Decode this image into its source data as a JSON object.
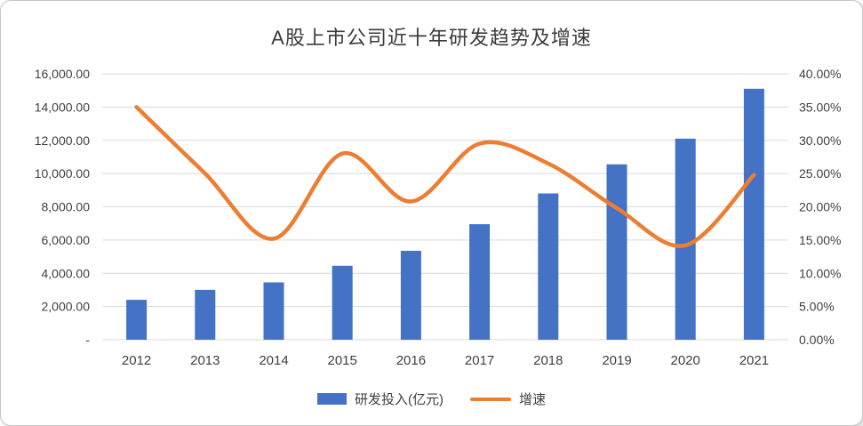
{
  "chart_data": {
    "type": "combo",
    "title": "A股上市公司近十年研发趋势及增速",
    "categories": [
      "2012",
      "2013",
      "2014",
      "2015",
      "2016",
      "2017",
      "2018",
      "2019",
      "2020",
      "2021"
    ],
    "series": [
      {
        "name": "研发投入(亿元)",
        "type": "bar",
        "axis": "left",
        "color": "#4472C4",
        "values": [
          2400,
          3000,
          3450,
          4450,
          5350,
          6950,
          8800,
          10550,
          12100,
          15100
        ]
      },
      {
        "name": "增速",
        "type": "line",
        "axis": "right",
        "color": "#ED7D31",
        "values": [
          35.0,
          25.0,
          15.2,
          28.0,
          20.8,
          29.5,
          26.5,
          19.8,
          14.2,
          24.8
        ]
      }
    ],
    "left_axis": {
      "min": 0,
      "max": 16000,
      "step": 2000,
      "tick_labels": [
        "16,000.00",
        "14,000.00",
        "12,000.00",
        "10,000.00",
        "8,000.00",
        "6,000.00",
        "4,000.00",
        "2,000.00",
        "-"
      ]
    },
    "right_axis": {
      "min": 0,
      "max": 40,
      "step": 5,
      "tick_labels": [
        "40.00%",
        "35.00%",
        "30.00%",
        "25.00%",
        "20.00%",
        "15.00%",
        "10.00%",
        "5.00%",
        "0.00%"
      ]
    },
    "grid": true,
    "grid_color": "#d9d9d9",
    "legend_position": "bottom"
  }
}
